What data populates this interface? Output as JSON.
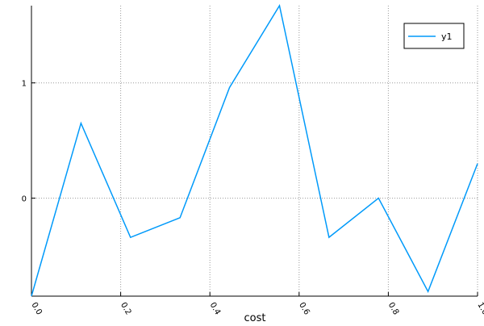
{
  "chart_data": {
    "type": "line",
    "title": "",
    "xlabel": "cost",
    "ylabel": "",
    "xlim": [
      0.0,
      1.0
    ],
    "ylim": [
      -0.85,
      1.67
    ],
    "xticks": [
      0.0,
      0.2,
      0.4,
      0.6,
      0.8,
      1.0
    ],
    "xtick_labels": [
      "0.0",
      "0.2",
      "0.4",
      "0.6",
      "0.8",
      "1.0"
    ],
    "yticks": [
      0,
      1
    ],
    "ytick_labels": [
      "0",
      "1"
    ],
    "grid": true,
    "legend_position": "top-right",
    "series": [
      {
        "name": "y1",
        "color": "#009AFA",
        "x": [
          0.0,
          0.111,
          0.222,
          0.333,
          0.444,
          0.556,
          0.667,
          0.778,
          0.889,
          1.0
        ],
        "y": [
          -0.85,
          0.65,
          -0.34,
          -0.17,
          0.96,
          1.67,
          -0.34,
          0.0,
          -0.81,
          0.3
        ]
      }
    ]
  }
}
